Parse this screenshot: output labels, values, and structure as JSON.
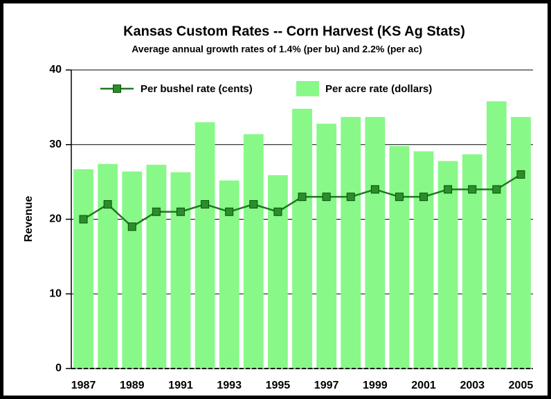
{
  "chart_data": {
    "type": "bar+line",
    "title": "Kansas Custom Rates -- Corn Harvest (KS Ag Stats)",
    "subtitle": "Average annual growth rates  of 1.4% (per bu) and 2.2% (per ac)",
    "y_label": "Revenue",
    "categories": [
      "1987",
      null,
      "1989",
      null,
      "1991",
      null,
      "1993",
      null,
      "1995",
      null,
      "1997",
      null,
      "1999",
      null,
      "2001",
      null,
      "2003",
      null,
      "2005"
    ],
    "series": [
      {
        "name": "Per bushel rate (cents)",
        "type": "line",
        "color": "#1e7a1e",
        "marker_color": "#2a8f2a",
        "values": [
          20,
          22,
          19,
          21,
          21,
          22,
          21,
          22,
          21,
          23,
          23,
          23,
          24,
          23,
          23,
          24,
          24,
          24,
          26
        ]
      },
      {
        "name": "Per acre rate (dollars)",
        "type": "bar",
        "color": "#88f888",
        "values": [
          26.7,
          27.4,
          26.4,
          27.3,
          26.3,
          33.0,
          25.2,
          31.4,
          25.9,
          34.8,
          32.8,
          33.7,
          33.7,
          29.8,
          29.1,
          27.8,
          28.7,
          35.8,
          33.7
        ]
      }
    ],
    "ylim": [
      0,
      40
    ],
    "yticks": [
      0,
      10,
      20,
      30,
      40
    ],
    "grid": true
  }
}
